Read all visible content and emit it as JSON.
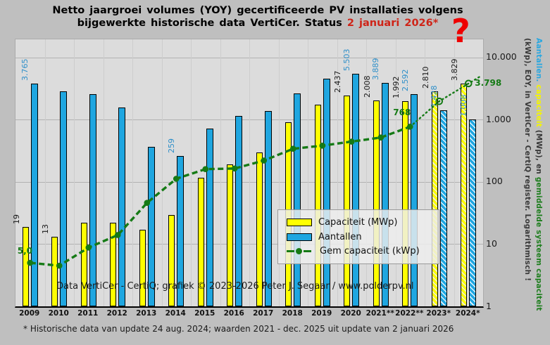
{
  "title": {
    "line1": "Netto jaargroei volumes (YOY) gecertificeerde PV installaties volgens",
    "line2_prefix": "bijgewerkte historische data VertiCer. Status ",
    "line2_highlight": "2 januari 2026*",
    "question_mark": "?"
  },
  "watermark": "Data VertiCer - CertiQ; grafiek © 2023-2026  Peter J. Segaar / www.polderpv.nl",
  "footnote": "* Historische data van update 24 aug. 2024; waarden 2021 - dec. 2025 uit update van 2 januari 2026",
  "legend": {
    "items": [
      {
        "label": "Capaciteit (MWp)",
        "swatch": "yellow-bar"
      },
      {
        "label": "Aantallen",
        "swatch": "blue-bar"
      },
      {
        "label": "Gem capaciteit (kWp)",
        "swatch": "green-dash-line"
      }
    ]
  },
  "y_axis": {
    "scale": "log",
    "ticks": [
      {
        "label": "10.000",
        "value": 10000
      },
      {
        "label": "1.000",
        "value": 1000
      },
      {
        "label": "100",
        "value": 100
      },
      {
        "label": "10",
        "value": 10
      },
      {
        "label": "1",
        "value": 1
      }
    ]
  },
  "right_axis_title": {
    "line1_parts": [
      {
        "text": "Aantallen.",
        "color": "#2aa7e0"
      },
      {
        "text": " capaciteit",
        "color": "#f5f500"
      },
      {
        "text": " (MWp), en ",
        "color": "#3a3a3a"
      },
      {
        "text": "gemiddelde systeem capaciteit",
        "color": "#1e7e1e"
      }
    ],
    "line2": "(kWp), EOY, in VertiCer - CertiQ register. Logarithmisch !"
  },
  "chart_data": {
    "type": "bar",
    "scale": "log",
    "ylim": [
      1,
      10000
    ],
    "categories": [
      "2009",
      "2010",
      "2011",
      "2012",
      "2013",
      "2014",
      "2015",
      "2016",
      "2017",
      "2018",
      "2019",
      "2020",
      "2021**",
      "2022**",
      "2023*",
      "2024*"
    ],
    "series": [
      {
        "name": "Capaciteit (MWp)",
        "type": "bar",
        "color": "#ffff00",
        "values": [
          19,
          13,
          22,
          22,
          17,
          29,
          115,
          190,
          300,
          900,
          1730,
          2437,
          2008,
          1992,
          2810,
          3829
        ],
        "labels": [
          "19",
          "13",
          null,
          null,
          null,
          null,
          null,
          null,
          null,
          null,
          null,
          "2.437",
          "2.008",
          "1.992",
          "2.810",
          "3.829"
        ]
      },
      {
        "name": "Aantallen",
        "type": "bar",
        "color": "#1fa6e0",
        "values": [
          3765,
          2865,
          2580,
          1575,
          365,
          259,
          720,
          1160,
          1360,
          2650,
          4540,
          5503,
          3889,
          2592,
          1428,
          1008
        ],
        "labels": [
          "3.765",
          null,
          null,
          null,
          null,
          "259",
          null,
          null,
          null,
          null,
          null,
          "5.503",
          "3.889",
          "2.592",
          "1.428",
          "1.008"
        ]
      },
      {
        "name": "Gem capaciteit (kWp)",
        "type": "line",
        "color": "#157a15",
        "values": [
          5.0,
          4.5,
          8.8,
          14,
          46,
          112,
          160,
          164,
          220,
          340,
          381,
          443,
          516,
          768,
          1968,
          3798
        ],
        "labels": [
          "5,0",
          null,
          null,
          null,
          null,
          null,
          null,
          null,
          null,
          null,
          null,
          null,
          null,
          "768",
          null,
          "3.798"
        ]
      }
    ],
    "hatched_from_index": 14,
    "open_marker_from_index": 14,
    "dotted_line_from_index": 13
  },
  "colors": {
    "background": "#bfbfbf",
    "plot_background": "#dcdcdc",
    "bar_yellow": "#ffff00",
    "bar_blue": "#1fa6e0",
    "line_green": "#157a15",
    "blue_label": "#2e8fc9",
    "title_red": "#cf2418",
    "question_red": "#ee0000"
  }
}
